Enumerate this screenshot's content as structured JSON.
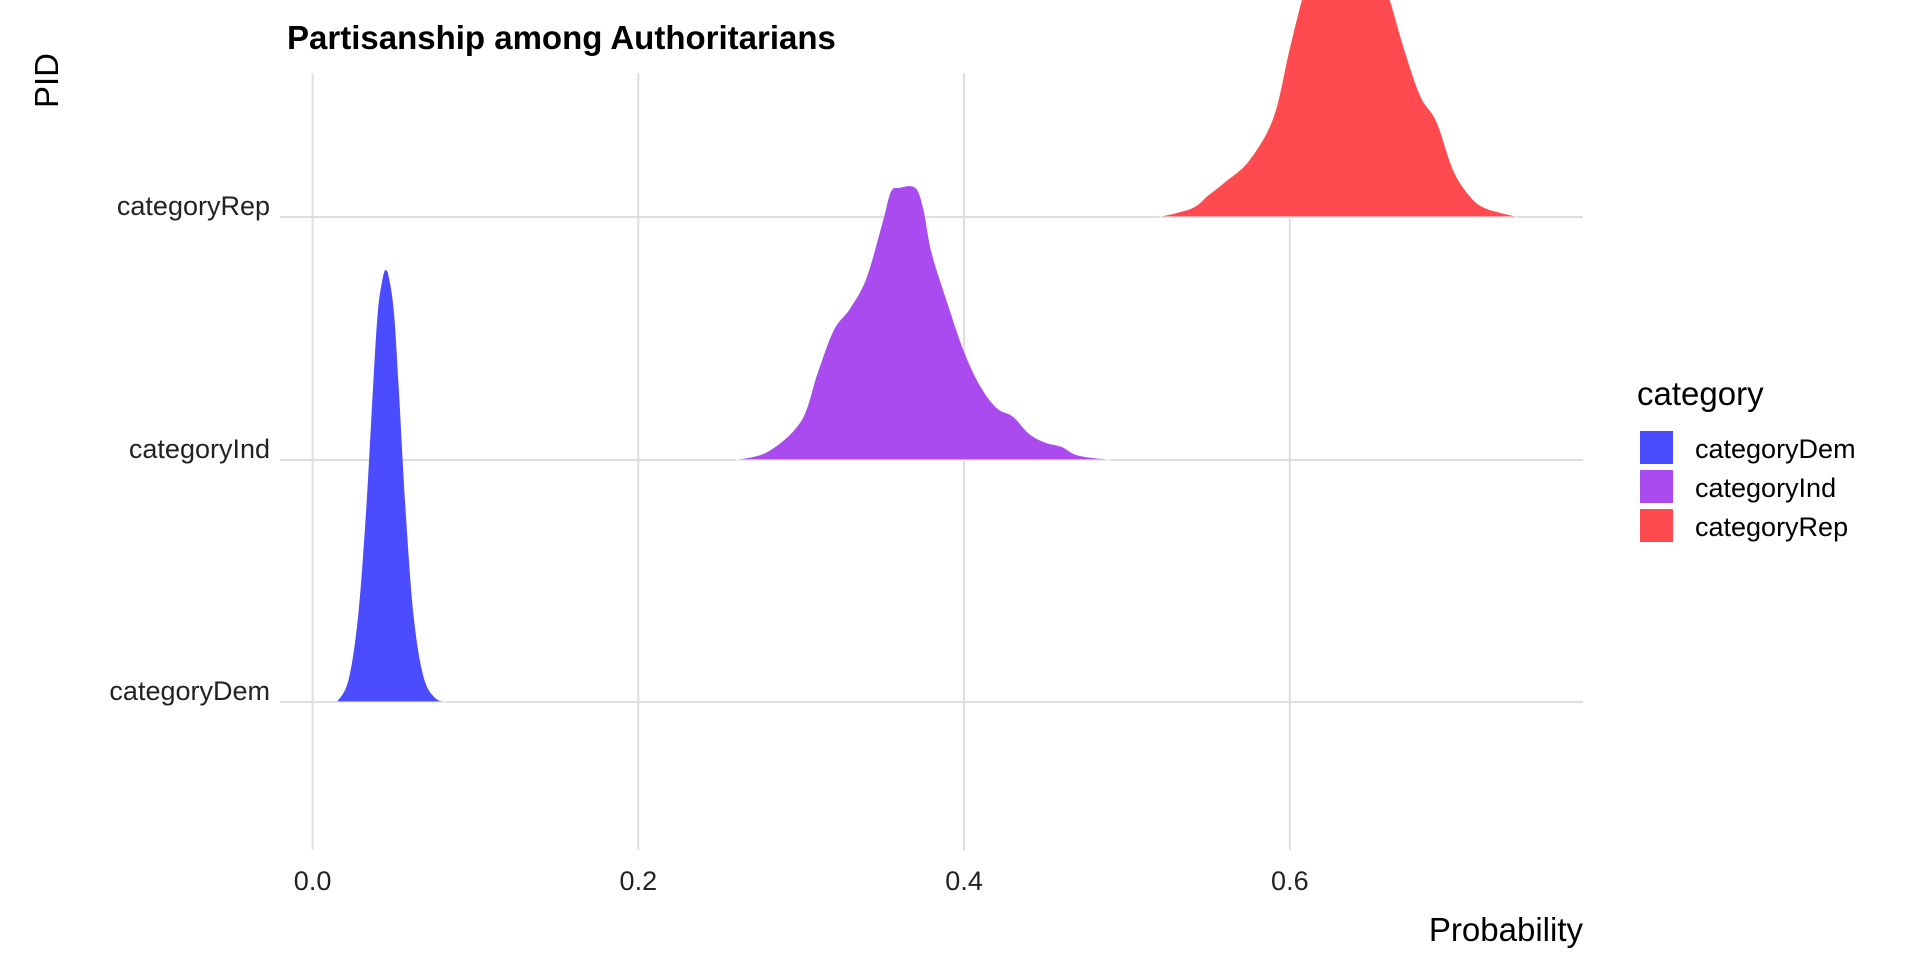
{
  "chart_data": {
    "type": "ridgeline",
    "title": "Partisanship among Authoritarians",
    "xlabel": "Probability",
    "ylabel": "PID",
    "xlim": [
      -0.02,
      0.78
    ],
    "x_ticks": [
      "0.0",
      "0.2",
      "0.4",
      "0.6"
    ],
    "x_tick_values": [
      0.0,
      0.2,
      0.4,
      0.6
    ],
    "grid": true,
    "legend": {
      "title": "category",
      "position": "right",
      "entries": [
        "categoryDem",
        "categoryInd",
        "categoryRep"
      ]
    },
    "categories": [
      "categoryDem",
      "categoryInd",
      "categoryRep"
    ],
    "series": [
      {
        "name": "categoryDem",
        "color": "#4B4BFF",
        "x": [
          0.015,
          0.022,
          0.028,
          0.033,
          0.037,
          0.04,
          0.043,
          0.045,
          0.047,
          0.05,
          0.053,
          0.057,
          0.062,
          0.068,
          0.075,
          0.082
        ],
        "density": [
          0.0,
          0.05,
          0.2,
          0.45,
          0.72,
          0.9,
          0.98,
          1.0,
          0.98,
          0.9,
          0.72,
          0.45,
          0.2,
          0.06,
          0.01,
          0.0
        ]
      },
      {
        "name": "categoryInd",
        "color": "#AA4BF0",
        "x": [
          0.26,
          0.28,
          0.3,
          0.31,
          0.32,
          0.33,
          0.34,
          0.35,
          0.355,
          0.36,
          0.37,
          0.375,
          0.38,
          0.39,
          0.4,
          0.41,
          0.42,
          0.43,
          0.44,
          0.45,
          0.46,
          0.47,
          0.49
        ],
        "density": [
          0.0,
          0.02,
          0.09,
          0.2,
          0.3,
          0.35,
          0.42,
          0.55,
          0.62,
          0.63,
          0.63,
          0.58,
          0.48,
          0.36,
          0.25,
          0.17,
          0.12,
          0.1,
          0.06,
          0.04,
          0.03,
          0.01,
          0.0
        ]
      },
      {
        "name": "categoryRep",
        "color": "#FF4B50",
        "x": [
          0.52,
          0.54,
          0.55,
          0.56,
          0.575,
          0.59,
          0.6,
          0.61,
          0.62,
          0.625,
          0.63,
          0.64,
          0.65,
          0.66,
          0.67,
          0.68,
          0.69,
          0.7,
          0.71,
          0.72,
          0.74
        ],
        "density": [
          0.0,
          0.02,
          0.05,
          0.08,
          0.13,
          0.23,
          0.39,
          0.54,
          0.67,
          0.74,
          0.72,
          0.68,
          0.64,
          0.52,
          0.39,
          0.28,
          0.22,
          0.11,
          0.05,
          0.02,
          0.0
        ]
      }
    ]
  }
}
